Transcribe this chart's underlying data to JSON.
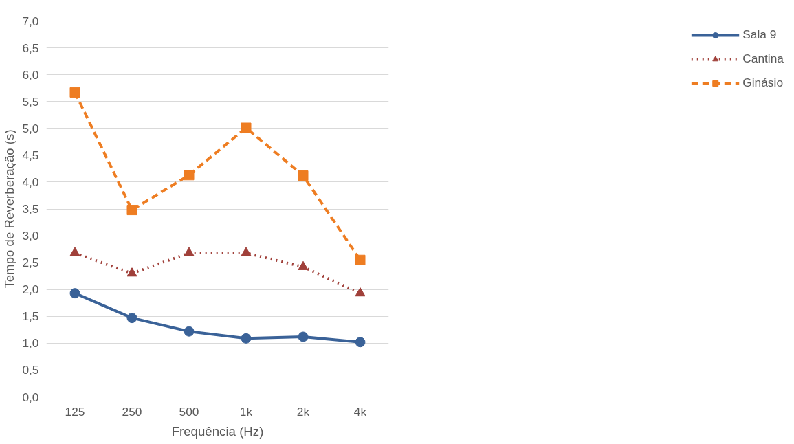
{
  "chart_data": {
    "type": "line",
    "xlabel": "Frequência (Hz)",
    "ylabel": "Tempo de Reverberação (s)",
    "categories": [
      "125",
      "250",
      "500",
      "1k",
      "2k",
      "4k"
    ],
    "ylim": [
      0,
      7
    ],
    "yticks": [
      {
        "value": 0,
        "label": "0,0"
      },
      {
        "value": 0.5,
        "label": "0,5"
      },
      {
        "value": 1,
        "label": "1,0"
      },
      {
        "value": 1.5,
        "label": "1,5"
      },
      {
        "value": 2,
        "label": "2,0"
      },
      {
        "value": 2.5,
        "label": "2,5"
      },
      {
        "value": 3,
        "label": "3,0"
      },
      {
        "value": 3.5,
        "label": "3,5"
      },
      {
        "value": 4,
        "label": "4,0"
      },
      {
        "value": 4.5,
        "label": "4,5"
      },
      {
        "value": 5,
        "label": "5,0"
      },
      {
        "value": 5.5,
        "label": "5,5"
      },
      {
        "value": 6,
        "label": "6,0"
      },
      {
        "value": 6.5,
        "label": "6,5"
      },
      {
        "value": 7,
        "label": "7,0"
      }
    ],
    "grid": "y",
    "legend": "right",
    "series": [
      {
        "name": "Sala 9",
        "color": "#3a6298",
        "marker": "circle",
        "line_style": "solid",
        "values": [
          1.93,
          1.47,
          1.22,
          1.09,
          1.12,
          1.02
        ]
      },
      {
        "name": "Cantina",
        "color": "#a0403a",
        "marker": "triangle",
        "line_style": "dotted",
        "values": [
          2.68,
          2.3,
          2.68,
          2.68,
          2.42,
          1.93
        ]
      },
      {
        "name": "Ginásio",
        "color": "#ee7d22",
        "marker": "square",
        "line_style": "dashed",
        "values": [
          5.67,
          3.48,
          4.13,
          5.01,
          4.12,
          2.55
        ]
      }
    ]
  }
}
